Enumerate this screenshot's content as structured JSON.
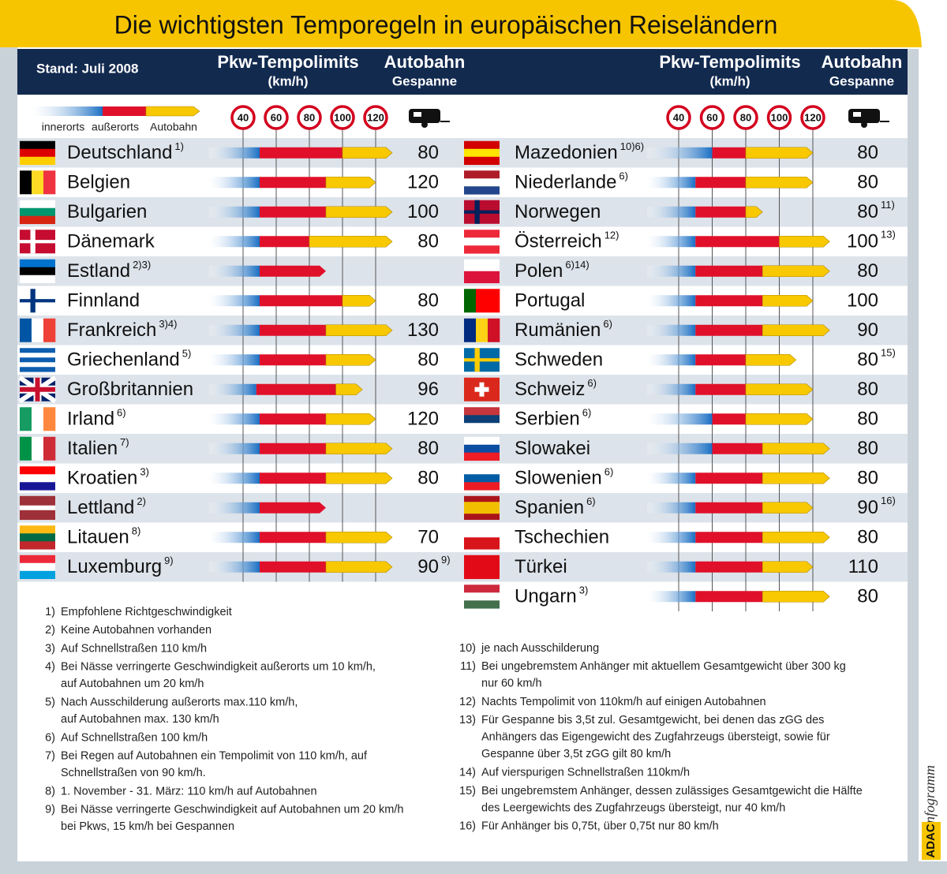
{
  "title": "Die wichtigsten Temporegeln in europäischen Reiseländern",
  "header": {
    "stand": "Stand: Juli 2008",
    "limits": "Pkw-Tempolimits",
    "unit": "(km/h)",
    "motorway": "Autobahn",
    "trailer": "Gespanne"
  },
  "legend": {
    "inner": "innerorts",
    "outer": "außerorts",
    "motorway": "Autobahn"
  },
  "scale": {
    "ticks": [
      40,
      60,
      80,
      100,
      120
    ]
  },
  "left": [
    {
      "name": "Deutschland",
      "note": "1)",
      "inner": 50,
      "outer": 100,
      "motorway": 130,
      "trailer": 80
    },
    {
      "name": "Belgien",
      "inner": 50,
      "outer": 90,
      "motorway": 120,
      "trailer": 120
    },
    {
      "name": "Bulgarien",
      "inner": 50,
      "outer": 90,
      "motorway": 130,
      "trailer": 100
    },
    {
      "name": "Dänemark",
      "inner": 50,
      "outer": 80,
      "motorway": 130,
      "trailer": 80
    },
    {
      "name": "Estland",
      "note": "2)3)",
      "inner": 50,
      "outer": 90
    },
    {
      "name": "Finnland",
      "inner": 50,
      "outer": 100,
      "motorway": 120,
      "trailer": 80
    },
    {
      "name": "Frankreich",
      "note": "3)4)",
      "inner": 50,
      "outer": 90,
      "motorway": 130,
      "trailer": 130
    },
    {
      "name": "Griechenland",
      "note": "5)",
      "inner": 50,
      "outer": 90,
      "motorway": 120,
      "trailer": 80
    },
    {
      "name": "Großbritannien",
      "inner": 48,
      "outer": 96,
      "motorway": 112,
      "trailer": 96
    },
    {
      "name": "Irland",
      "note": "6)",
      "inner": 50,
      "outer": 90,
      "motorway": 120,
      "trailer": 120
    },
    {
      "name": "Italien",
      "note": "7)",
      "inner": 50,
      "outer": 90,
      "motorway": 130,
      "trailer": 80
    },
    {
      "name": "Kroatien",
      "note": "3)",
      "inner": 50,
      "outer": 90,
      "motorway": 130,
      "trailer": 80
    },
    {
      "name": "Lettland",
      "note": "2)",
      "inner": 50,
      "outer": 90
    },
    {
      "name": "Litauen",
      "note": "8)",
      "inner": 50,
      "outer": 90,
      "motorway": 130,
      "trailer": 70
    },
    {
      "name": "Luxemburg",
      "note": "9)",
      "inner": 50,
      "outer": 90,
      "motorway": 130,
      "trailer": 90,
      "trailer_note": "9)"
    }
  ],
  "right": [
    {
      "name": "Mazedonien",
      "note": "10)6)",
      "inner": 60,
      "outer": 80,
      "motorway": 120,
      "trailer": 80
    },
    {
      "name": "Niederlande",
      "note": "6)",
      "inner": 50,
      "outer": 80,
      "motorway": 120,
      "trailer": 80
    },
    {
      "name": "Norwegen",
      "inner": 50,
      "outer": 80,
      "motorway": 90,
      "trailer": 80,
      "trailer_note": "11)"
    },
    {
      "name": "Österreich",
      "note": "12)",
      "inner": 50,
      "outer": 100,
      "motorway": 130,
      "trailer": 100,
      "trailer_note": "13)"
    },
    {
      "name": "Polen",
      "note": "6)14)",
      "inner": 50,
      "outer": 90,
      "motorway": 130,
      "trailer": 80
    },
    {
      "name": "Portugal",
      "inner": 50,
      "outer": 90,
      "motorway": 120,
      "trailer": 100
    },
    {
      "name": "Rumänien",
      "note": "6)",
      "inner": 50,
      "outer": 90,
      "motorway": 130,
      "trailer": 90
    },
    {
      "name": "Schweden",
      "inner": 50,
      "outer": 80,
      "motorway": 110,
      "trailer": 80,
      "trailer_note": "15)"
    },
    {
      "name": "Schweiz",
      "note": "6)",
      "inner": 50,
      "outer": 80,
      "motorway": 120,
      "trailer": 80
    },
    {
      "name": "Serbien",
      "note": "6)",
      "inner": 60,
      "outer": 80,
      "motorway": 120,
      "trailer": 80
    },
    {
      "name": "Slowakei",
      "inner": 60,
      "outer": 90,
      "motorway": 130,
      "trailer": 80
    },
    {
      "name": "Slowenien",
      "note": "6)",
      "inner": 50,
      "outer": 90,
      "motorway": 130,
      "trailer": 80
    },
    {
      "name": "Spanien",
      "note": "6)",
      "inner": 50,
      "outer": 90,
      "motorway": 120,
      "trailer": 90,
      "trailer_note": "16)"
    },
    {
      "name": "Tschechien",
      "inner": 50,
      "outer": 90,
      "motorway": 130,
      "trailer": 80
    },
    {
      "name": "Türkei",
      "inner": 50,
      "outer": 90,
      "motorway": 120,
      "trailer": 110
    },
    {
      "name": "Ungarn",
      "note": "3)",
      "inner": 50,
      "outer": 90,
      "motorway": 130,
      "trailer": 80
    }
  ],
  "footnotes_left": [
    {
      "num": "1)",
      "lines": [
        "Empfohlene Richtgeschwindigkeit"
      ]
    },
    {
      "num": "2)",
      "lines": [
        "Keine Autobahnen vorhanden"
      ]
    },
    {
      "num": "3)",
      "lines": [
        "Auf Schnellstraßen 110 km/h"
      ]
    },
    {
      "num": "4)",
      "lines": [
        "Bei Nässe verringerte Geschwindigkeit außerorts um 10 km/h,",
        "auf Autobahnen um 20 km/h"
      ]
    },
    {
      "num": "5)",
      "lines": [
        "Nach Ausschilderung außerorts max.110 km/h,",
        "auf Autobahnen max. 130 km/h"
      ]
    },
    {
      "num": "6)",
      "lines": [
        "Auf Schnellstraßen 100 km/h"
      ]
    },
    {
      "num": "7)",
      "lines": [
        "Bei Regen auf Autobahnen ein Tempolimit von 110 km/h, auf",
        "Schnellstraßen von 90 km/h."
      ]
    },
    {
      "num": "8)",
      "lines": [
        "1. November - 31. März: 110 km/h auf Autobahnen"
      ]
    },
    {
      "num": "9)",
      "lines": [
        "Bei Nässe verringerte Geschwindigkeit auf Autobahnen um 20 km/h",
        "bei Pkws, 15 km/h bei Gespannen"
      ]
    }
  ],
  "footnotes_right": [
    {
      "num": "10)",
      "lines": [
        "je nach Ausschilderung"
      ]
    },
    {
      "num": "11)",
      "lines": [
        "Bei ungebremstem Anhänger mit aktuellem Gesamtgewicht über 300 kg",
        "nur 60 km/h"
      ]
    },
    {
      "num": "12)",
      "lines": [
        "Nachts Tempolimit von 110km/h auf einigen Autobahnen"
      ]
    },
    {
      "num": "13)",
      "lines": [
        "Für Gespanne bis 3,5t zul. Gesamtgewicht,  bei denen das zGG des",
        "Anhängers das Eigengewicht des Zugfahrzeugs übersteigt, sowie für",
        "Gespanne über 3,5t zGG gilt 80 km/h"
      ]
    },
    {
      "num": "14)",
      "lines": [
        "Auf vierspurigen Schnellstraßen 110km/h"
      ]
    },
    {
      "num": "15)",
      "lines": [
        "Bei ungebremstem Anhänger, dessen zulässiges Gesamtgewicht die Hälfte",
        "des Leergewichts des Zugfahrzeugs übersteigt, nur 40 km/h"
      ]
    },
    {
      "num": "16)",
      "lines": [
        "Für Anhänger bis 0,75t, über 0,75t nur 80 km/h"
      ]
    }
  ],
  "brand": {
    "adac": "ADAC",
    "info": "Infogramm"
  }
}
